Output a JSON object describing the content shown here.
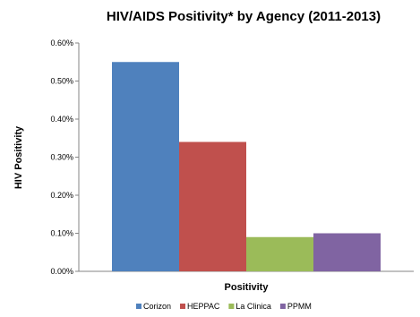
{
  "chart_data": {
    "type": "bar",
    "title": "HIV/AIDS Positivity* by Agency (2011-2013)",
    "xlabel": "Positivity",
    "ylabel": "HIV Positivity",
    "categories": [
      "Positivity"
    ],
    "series": [
      {
        "name": "Corizon",
        "values": [
          0.55
        ],
        "color": "#4F81BD"
      },
      {
        "name": "HEPPAC",
        "values": [
          0.34
        ],
        "color": "#C0504D"
      },
      {
        "name": "La Clinica",
        "values": [
          0.09
        ],
        "color": "#9BBB59"
      },
      {
        "name": "PPMM",
        "values": [
          0.1
        ],
        "color": "#8064A2"
      }
    ],
    "ylim": [
      0,
      0.6
    ],
    "y_ticks": [
      "0.00%",
      "0.10%",
      "0.20%",
      "0.30%",
      "0.40%",
      "0.50%",
      "0.60%"
    ],
    "y_tick_values": [
      0,
      0.1,
      0.2,
      0.3,
      0.4,
      0.5,
      0.6
    ],
    "value_unit": "%",
    "grid": false,
    "legend_position": "bottom"
  }
}
